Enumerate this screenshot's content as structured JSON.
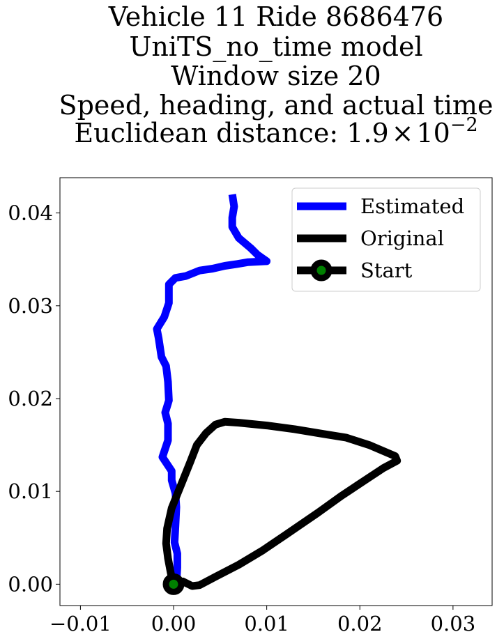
{
  "chart_data": {
    "type": "line",
    "title_lines": [
      "Vehicle 11 Ride 8686476",
      "UniTS_no_time model",
      "Window size 20",
      "Speed, heading, and actual time"
    ],
    "title_last_prefix": "Euclidean distance: 1.9",
    "title_last_times": "×",
    "title_last_base": "10",
    "title_last_exp": "−2",
    "xlabel": "",
    "ylabel": "",
    "xlim": [
      -0.0122,
      0.0342
    ],
    "ylim": [
      -0.0023,
      0.0438
    ],
    "x_ticks": [
      -0.01,
      0.0,
      0.01,
      0.02,
      0.03
    ],
    "x_tick_labels": [
      "−0.01",
      "0.00",
      "0.01",
      "0.02",
      "0.03"
    ],
    "y_ticks": [
      0.0,
      0.01,
      0.02,
      0.03,
      0.04
    ],
    "y_tick_labels": [
      "0.00",
      "0.01",
      "0.02",
      "0.03",
      "0.04"
    ],
    "grid": false,
    "legend_position": "top-right",
    "legend": [
      "Estimated",
      "Original",
      "Start"
    ],
    "colors": {
      "estimated": "#0000ff",
      "original": "#000000",
      "start_fill": "#008000",
      "start_edge": "#000000"
    },
    "series": [
      {
        "name": "Estimated",
        "points": [
          [
            0.0003,
            0.0
          ],
          [
            0.0004,
            0.0018
          ],
          [
            0.0004,
            0.0033
          ],
          [
            0.0001,
            0.0045
          ],
          [
            0.0002,
            0.0063
          ],
          [
            0.0003,
            0.0083
          ],
          [
            0.0002,
            0.0098
          ],
          [
            -0.0002,
            0.0112
          ],
          [
            -0.0002,
            0.0122
          ],
          [
            -0.0012,
            0.0137
          ],
          [
            -0.0006,
            0.0155
          ],
          [
            -0.0006,
            0.0173
          ],
          [
            -0.0009,
            0.0185
          ],
          [
            -0.0005,
            0.0198
          ],
          [
            -0.0006,
            0.0218
          ],
          [
            -0.0008,
            0.0235
          ],
          [
            -0.0013,
            0.0245
          ],
          [
            -0.0016,
            0.0265
          ],
          [
            -0.0018,
            0.0275
          ],
          [
            -0.001,
            0.0288
          ],
          [
            -0.0005,
            0.0303
          ],
          [
            -0.0005,
            0.0315
          ],
          [
            -0.0005,
            0.0323
          ],
          [
            0.0002,
            0.033
          ],
          [
            0.0013,
            0.0332
          ],
          [
            0.0028,
            0.0338
          ],
          [
            0.0042,
            0.034
          ],
          [
            0.0055,
            0.0343
          ],
          [
            0.0068,
            0.0345
          ],
          [
            0.008,
            0.0347
          ],
          [
            0.01,
            0.0348
          ],
          [
            0.009,
            0.0355
          ],
          [
            0.0083,
            0.0362
          ],
          [
            0.007,
            0.0373
          ],
          [
            0.0063,
            0.0385
          ],
          [
            0.0063,
            0.0395
          ],
          [
            0.0065,
            0.0407
          ],
          [
            0.0063,
            0.042
          ]
        ]
      },
      {
        "name": "Original",
        "points": [
          [
            0.0,
            0.0
          ],
          [
            0.001,
            0.0003
          ],
          [
            0.002,
            -0.0002
          ],
          [
            0.0028,
            -0.0001
          ],
          [
            0.0045,
            0.0008
          ],
          [
            0.007,
            0.0021
          ],
          [
            0.0095,
            0.0036
          ],
          [
            0.012,
            0.0053
          ],
          [
            0.0155,
            0.0077
          ],
          [
            0.018,
            0.0095
          ],
          [
            0.021,
            0.0115
          ],
          [
            0.0225,
            0.0125
          ],
          [
            0.024,
            0.0133
          ],
          [
            0.0238,
            0.0138
          ],
          [
            0.021,
            0.015
          ],
          [
            0.0185,
            0.0158
          ],
          [
            0.016,
            0.0162
          ],
          [
            0.013,
            0.0167
          ],
          [
            0.01,
            0.0171
          ],
          [
            0.007,
            0.0174
          ],
          [
            0.0055,
            0.0175
          ],
          [
            0.0045,
            0.0172
          ],
          [
            0.0035,
            0.0163
          ],
          [
            0.0025,
            0.015
          ],
          [
            0.0018,
            0.0132
          ],
          [
            0.0008,
            0.0107
          ],
          [
            -0.0002,
            0.0082
          ],
          [
            -0.0007,
            0.006
          ],
          [
            -0.0008,
            0.0044
          ],
          [
            -0.0006,
            0.0028
          ],
          [
            -0.0003,
            0.0012
          ],
          [
            0.0,
            0.0
          ]
        ]
      },
      {
        "name": "Start",
        "points": [
          [
            0.0,
            0.0
          ]
        ]
      }
    ]
  }
}
